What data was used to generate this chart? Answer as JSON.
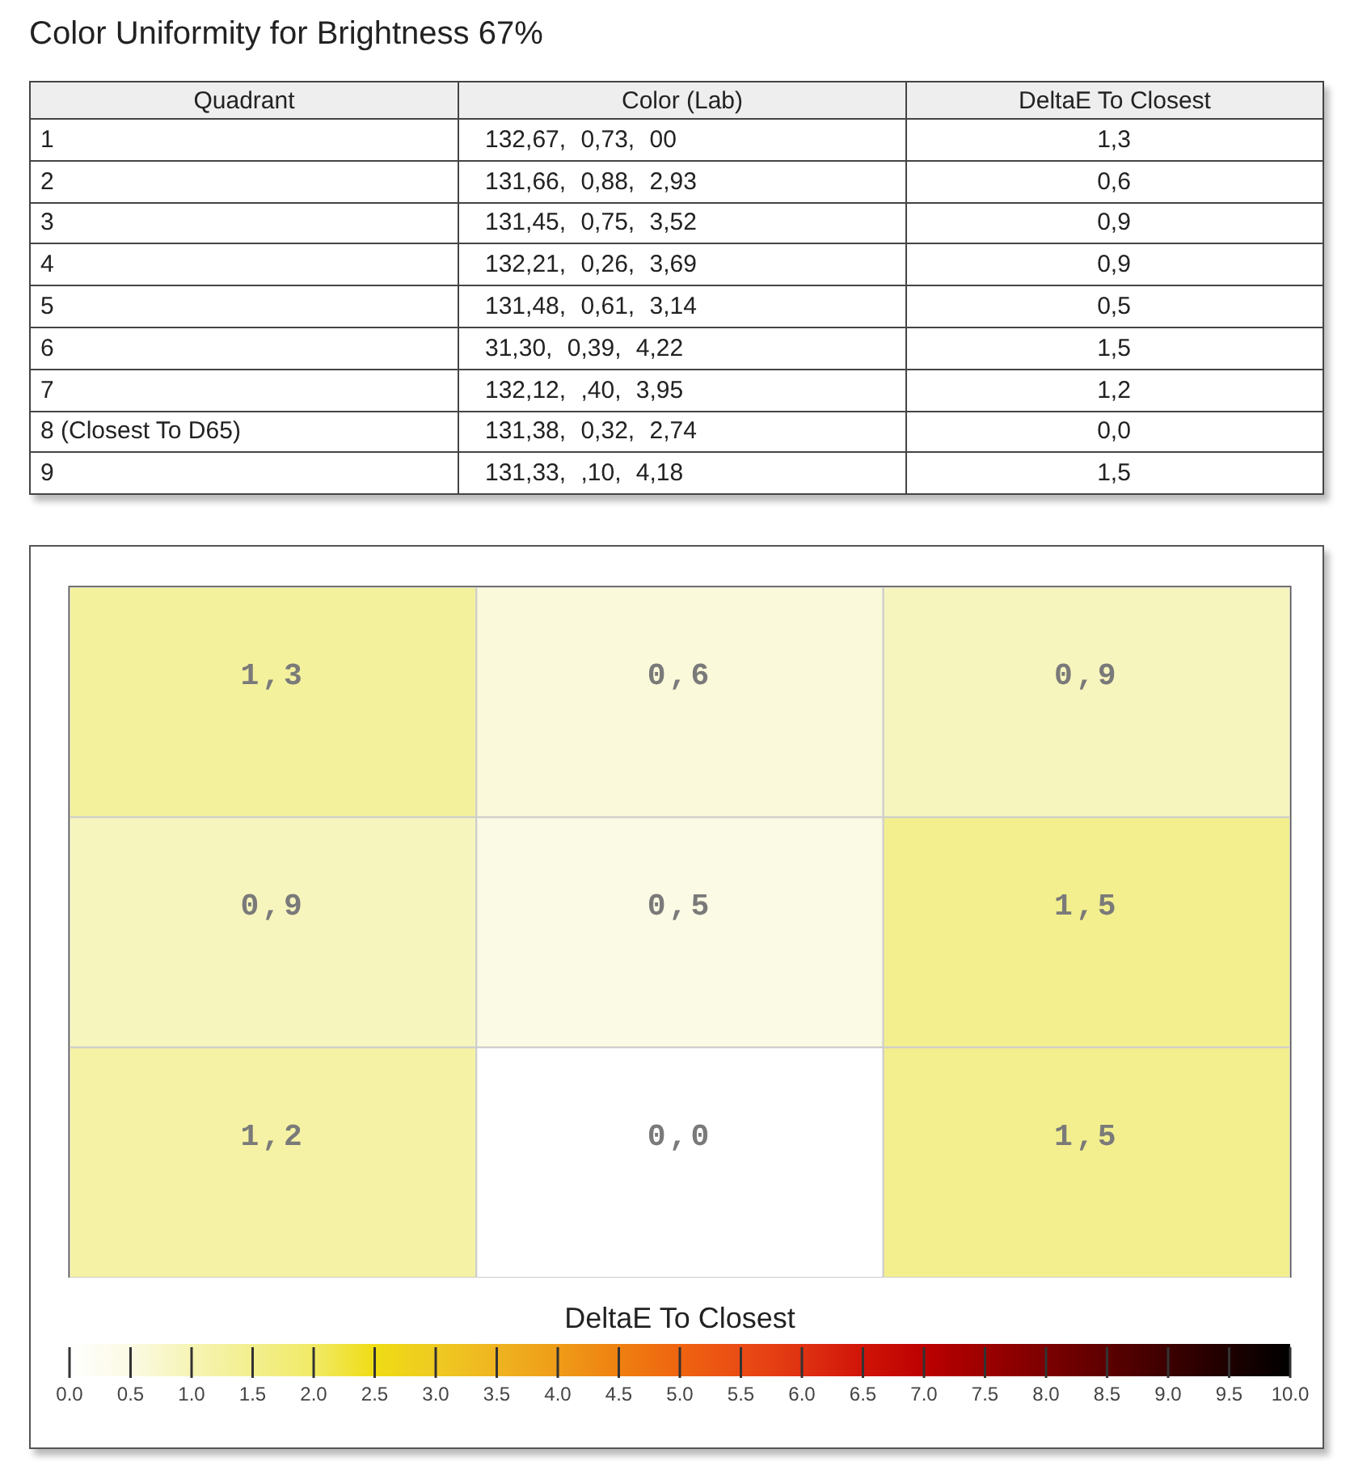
{
  "chart_data": [
    {
      "type": "other",
      "title": "Color Uniformity for Brightness 67%",
      "categories": [
        "Quadrant",
        "Color (Lab)",
        "DeltaE To Closest"
      ],
      "cell_labels": [
        [
          "1",
          "132,67, 0,73, 00",
          "1,3"
        ],
        [
          "2",
          "131,66, 0,88, 2,93",
          "0,6"
        ],
        [
          "3",
          "131,45, 0,75, 3,52",
          "0,9"
        ],
        [
          "4",
          "132,21, 0,26, 3,69",
          "0,9"
        ],
        [
          "5",
          "131,48, 0,61, 3,14",
          "0,5"
        ],
        [
          "6",
          "31,30, 0,39, 4,22",
          "1,5"
        ],
        [
          "7",
          "132,12, ,40, 3,95",
          "1,2"
        ],
        [
          "8 (Closest To D65)",
          "131,38, 0,32, 2,74",
          "0,0"
        ],
        [
          "9",
          "131,33, ,10, 4,18",
          "1,5"
        ]
      ]
    },
    {
      "type": "heatmap",
      "categories": [
        null,
        null,
        null
      ],
      "y_categories": [
        null,
        null,
        null
      ],
      "cells": [
        [
          1.3,
          0.6,
          0.9
        ],
        [
          0.9,
          0.5,
          1.5
        ],
        [
          1.2,
          0,
          1.5
        ]
      ],
      "cell_labels": [
        [
          "1,3",
          "0,6",
          "0,9"
        ],
        [
          "0,9",
          "0,5",
          "1,5"
        ],
        [
          "1,2",
          "0,0",
          "1,5"
        ]
      ],
      "clabel": "DeltaE To Closest",
      "clim": [
        0,
        10
      ],
      "cticks": [
        {
          "value": 0,
          "label": "0.0"
        },
        0.5,
        {
          "value": 1,
          "label": "1.0"
        },
        1.5,
        {
          "value": 2,
          "label": "2.0"
        },
        2.5,
        {
          "value": 3,
          "label": "3.0"
        },
        3.5,
        {
          "value": 4,
          "label": "4.0"
        },
        4.5,
        {
          "value": 5,
          "label": "5.0"
        },
        5.5,
        {
          "value": 6,
          "label": "6.0"
        },
        6.5,
        {
          "value": 7,
          "label": "7.0"
        },
        7.5,
        {
          "value": 8,
          "label": "8.0"
        },
        8.5,
        {
          "value": 9,
          "label": "9.0"
        },
        9.5,
        {
          "value": 10,
          "label": "10.0"
        }
      ]
    }
  ]
}
